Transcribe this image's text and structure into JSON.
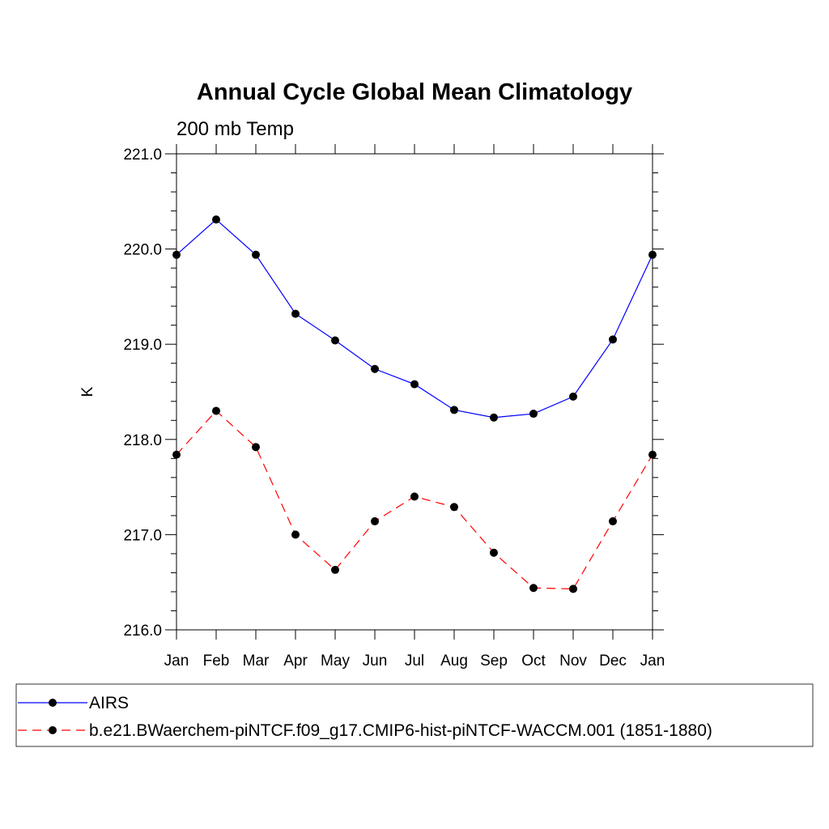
{
  "chart_data": {
    "type": "line",
    "title": "Annual Cycle Global Mean Climatology",
    "subtitle": "200 mb Temp",
    "xlabel": "",
    "ylabel": "K",
    "categories": [
      "Jan",
      "Feb",
      "Mar",
      "Apr",
      "May",
      "Jun",
      "Jul",
      "Aug",
      "Sep",
      "Oct",
      "Nov",
      "Dec",
      "Jan"
    ],
    "ylim": [
      216.0,
      221.0
    ],
    "yticks": [
      "216.0",
      "217.0",
      "218.0",
      "219.0",
      "220.0",
      "221.0"
    ],
    "series": [
      {
        "name": "AIRS",
        "color": "#0000ff",
        "dash": "solid",
        "values": [
          219.94,
          220.31,
          219.94,
          219.32,
          219.04,
          218.74,
          218.58,
          218.31,
          218.23,
          218.27,
          218.45,
          219.05,
          219.94
        ]
      },
      {
        "name": "b.e21.BWaerchem-piNTCF.f09_g17.CMIP6-hist-piNTCF-WACCM.001 (1851-1880)",
        "color": "#ff0000",
        "dash": "dashed",
        "values": [
          217.84,
          218.3,
          217.92,
          217.0,
          216.63,
          217.14,
          217.4,
          217.29,
          216.81,
          216.44,
          216.43,
          217.14,
          217.84
        ]
      }
    ],
    "grid": false,
    "legend_position": "bottom"
  }
}
